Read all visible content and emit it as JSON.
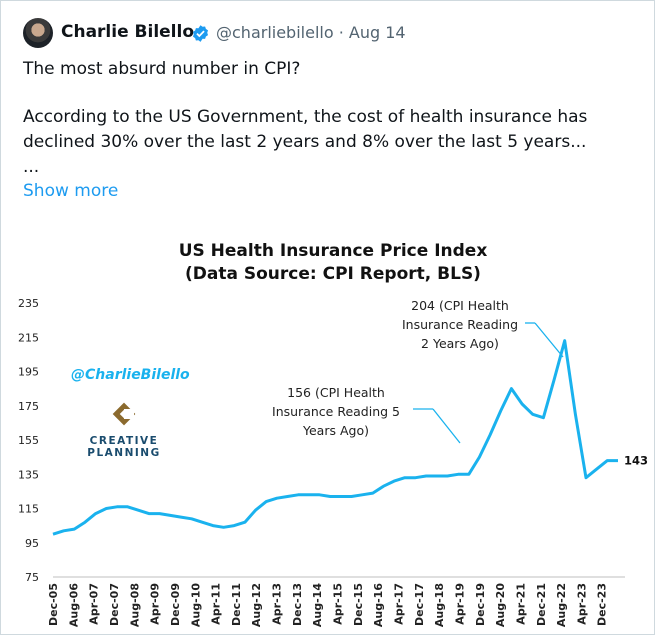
{
  "tweet": {
    "author_name": "Charlie Bilello",
    "handle": "@charliebilello",
    "separator": "·",
    "date": "Aug 14",
    "line1": "The most absurd number in CPI?",
    "line2": "According to the US Government, the cost of health insurance has",
    "line3": "declined 30% over the last 2 years and 8% over the last 5 years...",
    "ellipsis": "...",
    "show_more": "Show more"
  },
  "icons": {
    "verified": "verified-badge-icon",
    "avatar": "user-avatar"
  },
  "colors": {
    "line": "#1ab2ee",
    "link": "#1d9bf0",
    "watermark": "#1ab2ee",
    "logo": "#8b6a2e"
  },
  "chart_data": {
    "type": "line",
    "title_line1": "US Health Insurance Price Index",
    "title_line2": "(Data Source: CPI Report, BLS)",
    "ylim": [
      75,
      235
    ],
    "yticks": [
      75,
      95,
      115,
      135,
      155,
      175,
      195,
      215,
      235
    ],
    "x_tick_labels": [
      "Dec-05",
      "Aug-06",
      "Apr-07",
      "Dec-07",
      "Aug-08",
      "Apr-09",
      "Dec-09",
      "Aug-10",
      "Apr-11",
      "Dec-11",
      "Aug-12",
      "Apr-13",
      "Dec-13",
      "Aug-14",
      "Apr-15",
      "Dec-15",
      "Aug-16",
      "Apr-17",
      "Dec-17",
      "Aug-18",
      "Apr-19",
      "Dec-19",
      "Aug-20",
      "Apr-21",
      "Dec-21",
      "Aug-22",
      "Apr-23",
      "Dec-23"
    ],
    "grid": false,
    "series": [
      {
        "values": [
          100,
          102,
          103,
          107,
          112,
          115,
          116,
          116,
          114,
          112,
          112,
          111,
          110,
          109,
          107,
          105,
          104,
          105,
          107,
          114,
          119,
          121,
          122,
          123,
          123,
          123,
          122,
          122,
          122,
          123,
          124,
          128,
          131,
          133,
          133,
          134,
          134,
          134,
          135,
          135,
          145,
          158,
          172,
          185,
          176,
          170,
          168,
          190,
          213,
          170,
          133,
          138,
          143,
          143
        ],
        "end_label": "143"
      }
    ],
    "annotations": {
      "a204_line1": "204 (CPI Health",
      "a204_line2": "Insurance Reading",
      "a204_line3": "2 Years Ago)",
      "a156_line1": "156 (CPI Health",
      "a156_line2": "Insurance Reading 5",
      "a156_line3": "Years Ago)"
    },
    "watermark": "@CharlieBilello",
    "logo_line1": "CREATIVE",
    "logo_line2": "PLANNING"
  }
}
